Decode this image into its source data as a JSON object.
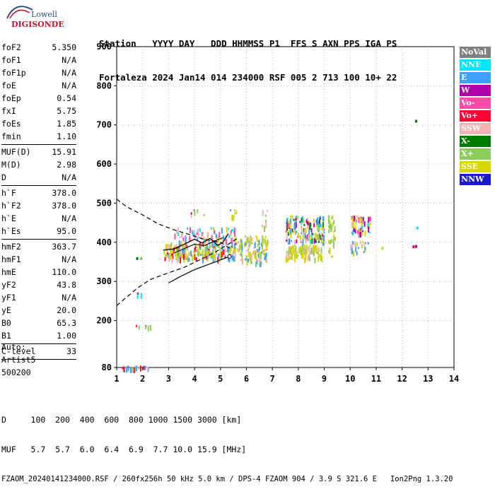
{
  "logo": {
    "line1": "Lowell",
    "line2": "DIGISONDE"
  },
  "header": {
    "row1": "Station   YYYY DAY   DDD HHMMSS P1  FFS S AXN PPS IGA PS",
    "row2": "Fortaleza 2024 Jan14 014 234000 RSF 005 2 713 100 10+ 22"
  },
  "params": [
    {
      "name": "foF2",
      "value": "5.350"
    },
    {
      "name": "foF1",
      "value": "N/A"
    },
    {
      "name": "foF1p",
      "value": "N/A"
    },
    {
      "name": "foE",
      "value": "N/A"
    },
    {
      "name": "foEp",
      "value": "0.54"
    },
    {
      "name": "fxI",
      "value": "5.75"
    },
    {
      "name": "foEs",
      "value": "1.85"
    },
    {
      "name": "fmin",
      "value": "1.10"
    },
    {
      "sep": true
    },
    {
      "name": "MUF(D)",
      "value": "15.91"
    },
    {
      "name": "M(D)",
      "value": "2.98"
    },
    {
      "name": "D",
      "value": "N/A"
    },
    {
      "sep": true
    },
    {
      "name": "h`F",
      "value": "378.0"
    },
    {
      "name": "h`F2",
      "value": "378.0"
    },
    {
      "name": "h`E",
      "value": "N/A"
    },
    {
      "name": "h`Es",
      "value": "95.0"
    },
    {
      "sep": true
    },
    {
      "name": "hmF2",
      "value": "363.7"
    },
    {
      "name": "hmF1",
      "value": "N/A"
    },
    {
      "name": "hmE",
      "value": "110.0"
    },
    {
      "name": "yF2",
      "value": "43.8"
    },
    {
      "name": "yF1",
      "value": "N/A"
    },
    {
      "name": "yE",
      "value": "20.0"
    },
    {
      "name": "B0",
      "value": "65.3"
    },
    {
      "name": "B1",
      "value": "1.00"
    },
    {
      "sep": true
    },
    {
      "name": "C-level",
      "value": "33"
    },
    {
      "sep": true
    }
  ],
  "auto": {
    "line1": "Auto:",
    "line2": "Artist5",
    "line3": "500200"
  },
  "footer": {
    "row1": "D     100  200  400  600  800 1000 1500 3000 [km]",
    "row2": "MUF   5.7  5.7  6.0  6.4  6.9  7.7 10.0 15.9 [MHz]",
    "row3": "FZAOM_20240141234000.RSF / 260fx256h 50 kHz 5.0 km / DPS-4 FZAOM 904 / 3.9 S 321.6 E   Ion2Png 1.3.20"
  },
  "legend": [
    {
      "label": "NoVal",
      "color": "#808080"
    },
    {
      "label": "NNE",
      "color": "#00e5ff"
    },
    {
      "label": "E",
      "color": "#3ea0ff"
    },
    {
      "label": "W",
      "color": "#b000a8"
    },
    {
      "label": "Vo-",
      "color": "#ff4aa8"
    },
    {
      "label": "Vo+",
      "color": "#ff0033"
    },
    {
      "label": "SSW",
      "color": "#f4b3b3"
    },
    {
      "label": "X-",
      "color": "#007a00"
    },
    {
      "label": "X+",
      "color": "#8ccc5a"
    },
    {
      "label": "SSE",
      "color": "#d6d600"
    },
    {
      "label": "NNW",
      "color": "#1a1acc"
    }
  ],
  "chart_data": {
    "type": "scatter",
    "xlim": [
      1,
      14
    ],
    "ylim": [
      80,
      900
    ],
    "xticks": [
      1,
      2,
      3,
      4,
      5,
      6,
      7,
      8,
      9,
      10,
      11,
      12,
      13,
      14
    ],
    "yticks": [
      80,
      200,
      300,
      400,
      500,
      600,
      700,
      800,
      900
    ],
    "grid": true,
    "curves": {
      "trace_o": [
        [
          2.8,
          380
        ],
        [
          3.2,
          383
        ],
        [
          3.6,
          395
        ],
        [
          4.0,
          408
        ],
        [
          4.3,
          398
        ],
        [
          4.6,
          410
        ],
        [
          4.9,
          392
        ],
        [
          5.1,
          400
        ],
        [
          5.3,
          422
        ]
      ],
      "trace_x": [
        [
          3.2,
          372
        ],
        [
          3.6,
          384
        ],
        [
          4.0,
          395
        ],
        [
          4.4,
          392
        ],
        [
          4.8,
          404
        ],
        [
          5.1,
          412
        ]
      ],
      "profile_dashed": [
        [
          1.0,
          238
        ],
        [
          1.3,
          255
        ],
        [
          1.8,
          283
        ],
        [
          2.3,
          305
        ],
        [
          3.0,
          322
        ],
        [
          3.6,
          336
        ],
        [
          4.2,
          355
        ],
        [
          4.8,
          375
        ],
        [
          5.3,
          395
        ],
        [
          5.7,
          412
        ]
      ],
      "profile_solid": [
        [
          3.0,
          296
        ],
        [
          3.5,
          314
        ],
        [
          4.0,
          330
        ],
        [
          4.6,
          345
        ],
        [
          5.35,
          363.7
        ]
      ],
      "profile_upper_dashed": [
        [
          1.0,
          510
        ],
        [
          1.4,
          490
        ],
        [
          2.0,
          470
        ],
        [
          2.6,
          447
        ],
        [
          3.2,
          432
        ],
        [
          3.8,
          420
        ],
        [
          4.4,
          407
        ],
        [
          5.0,
          400
        ],
        [
          5.35,
          385
        ]
      ]
    },
    "clusters": [
      {
        "xr": [
          2.8,
          5.6
        ],
        "yr": [
          360,
          400
        ],
        "c": [
          9,
          6,
          9,
          2,
          8,
          5
        ],
        "n": 240
      },
      {
        "xr": [
          3.2,
          5.6
        ],
        "yr": [
          400,
          440
        ],
        "c": [
          6,
          9,
          2,
          1,
          4
        ],
        "n": 90
      },
      {
        "xr": [
          5.6,
          6.8
        ],
        "yr": [
          350,
          420
        ],
        "c": [
          9,
          6,
          9,
          8,
          2
        ],
        "n": 120
      },
      {
        "xr": [
          7.5,
          8.9
        ],
        "yr": [
          360,
          395
        ],
        "c": [
          9,
          6,
          9,
          8
        ],
        "n": 110
      },
      {
        "xr": [
          7.5,
          9.0
        ],
        "yr": [
          400,
          470
        ],
        "c": [
          9,
          6,
          7,
          9,
          2,
          1,
          3
        ],
        "n": 160
      },
      {
        "xr": [
          9.1,
          9.4
        ],
        "yr": [
          365,
          470
        ],
        "c": [
          9,
          8
        ],
        "n": 30
      },
      {
        "xr": [
          10.0,
          10.8
        ],
        "yr": [
          425,
          470
        ],
        "c": [
          9,
          3,
          6,
          4,
          1
        ],
        "n": 55
      },
      {
        "xr": [
          10.0,
          10.7
        ],
        "yr": [
          375,
          405
        ],
        "c": [
          9,
          2,
          6
        ],
        "n": 25
      },
      {
        "xr": [
          6.5,
          6.8
        ],
        "yr": [
          440,
          490
        ],
        "c": [
          6,
          8
        ],
        "n": 8
      },
      {
        "xr": [
          3.8,
          4.4
        ],
        "yr": [
          470,
          485
        ],
        "c": [
          3,
          8,
          6
        ],
        "n": 6
      },
      {
        "xr": [
          5.3,
          5.6
        ],
        "yr": [
          465,
          490
        ],
        "c": [
          2,
          9
        ],
        "n": 8
      },
      {
        "xr": [
          1.2,
          2.2
        ],
        "yr": [
          80,
          85
        ],
        "c": [
          5,
          8,
          6,
          2
        ],
        "n": 22
      },
      {
        "xr": [
          1.7,
          2.3
        ],
        "yr": [
          186,
          190
        ],
        "c": [
          5,
          8
        ],
        "n": 6
      },
      {
        "xr": [
          1.7,
          1.95
        ],
        "yr": [
          270,
          273
        ],
        "c": [
          1,
          5
        ],
        "n": 4
      }
    ],
    "points": [
      {
        "x": 12.5,
        "y": 713,
        "c": 7
      },
      {
        "x": 12.5,
        "y": 393,
        "c": 3
      },
      {
        "x": 12.4,
        "y": 392,
        "c": 5
      },
      {
        "x": 12.55,
        "y": 440,
        "c": 1
      },
      {
        "x": 1.75,
        "y": 362,
        "c": 7
      },
      {
        "x": 1.9,
        "y": 362,
        "c": 8
      },
      {
        "x": 11.2,
        "y": 388,
        "c": 9
      }
    ]
  }
}
